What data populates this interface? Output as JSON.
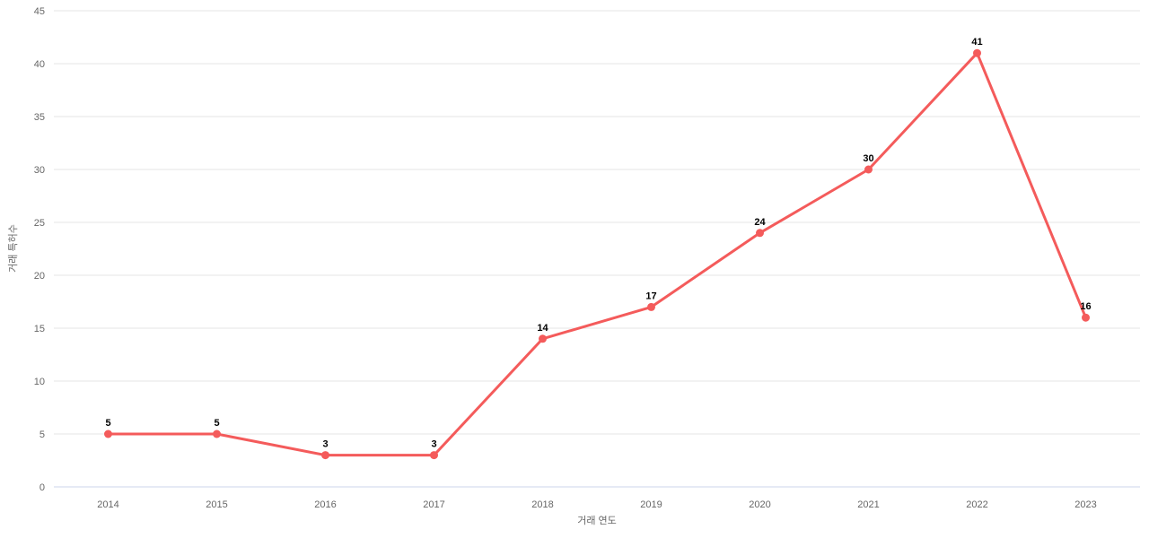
{
  "chart_data": {
    "type": "line",
    "title": "",
    "categories": [
      "2014",
      "2015",
      "2016",
      "2017",
      "2018",
      "2019",
      "2020",
      "2021",
      "2022",
      "2023"
    ],
    "series": [
      {
        "name": "거래 특허수",
        "values": [
          5,
          5,
          3,
          3,
          14,
          17,
          24,
          30,
          41,
          16
        ]
      }
    ],
    "data_labels_shown": true,
    "xlabel": "거래 연도",
    "ylabel": "거래 특허수",
    "ylim": [
      0,
      45
    ],
    "ytick_step": 5,
    "ytick_labels": [
      "0",
      "5",
      "10",
      "15",
      "20",
      "25",
      "30",
      "35",
      "40",
      "45"
    ],
    "grid": "horizontal",
    "legend": "none",
    "colors": {
      "line": "#f45b5b",
      "marker": "#f45b5b",
      "data_label": "#000000",
      "tick_label": "#666666",
      "axis_title": "#666666",
      "gridline": "#e6e6e6",
      "axis_line": "#ccd6eb",
      "background": "#ffffff"
    }
  }
}
